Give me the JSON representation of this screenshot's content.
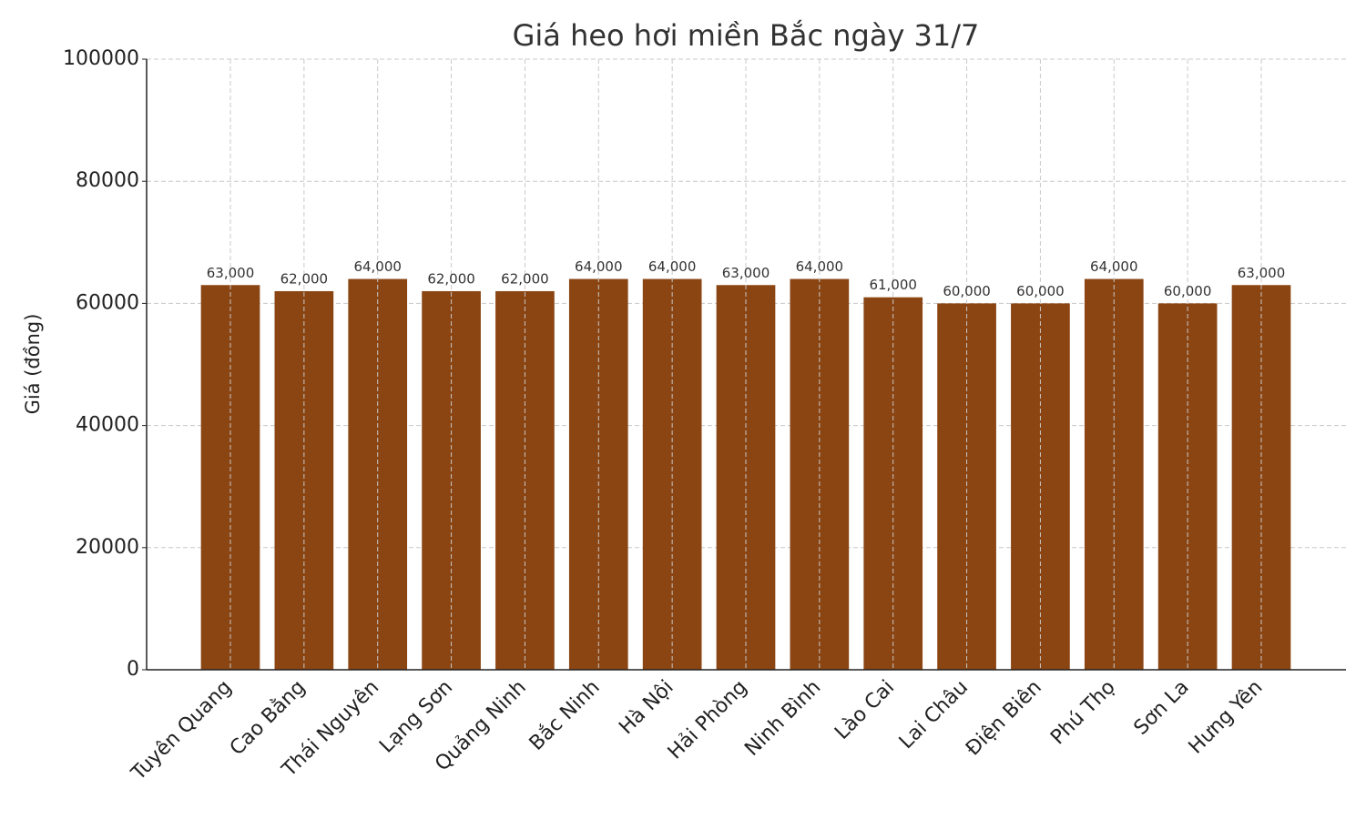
{
  "chart_data": {
    "type": "bar",
    "title": "Giá heo hơi miền Bắc ngày 31/7",
    "y_label": "Giá (đồng)",
    "categories": [
      "Tuyên Quang",
      "Cao Bằng",
      "Thái Nguyên",
      "Lạng Sơn",
      "Quảng Ninh",
      "Bắc Ninh",
      "Hà Nội",
      "Hải Phòng",
      "Ninh Bình",
      "Lào Cai",
      "Lai Châu",
      "Điện Biên",
      "Phú Thọ",
      "Sơn La",
      "Hưng Yên"
    ],
    "values": [
      63000,
      62000,
      64000,
      62000,
      62000,
      64000,
      64000,
      63000,
      64000,
      61000,
      60000,
      60000,
      64000,
      60000,
      63000
    ],
    "value_labels": [
      "63,000",
      "62,000",
      "64,000",
      "62,000",
      "62,000",
      "64,000",
      "64,000",
      "63,000",
      "64,000",
      "61,000",
      "60,000",
      "60,000",
      "64,000",
      "60,000",
      "63,000"
    ],
    "color": "#8b4513",
    "ylim": [
      0,
      100000
    ],
    "yticks": [
      0,
      20000,
      40000,
      60000,
      80000,
      100000
    ],
    "grid": true
  }
}
